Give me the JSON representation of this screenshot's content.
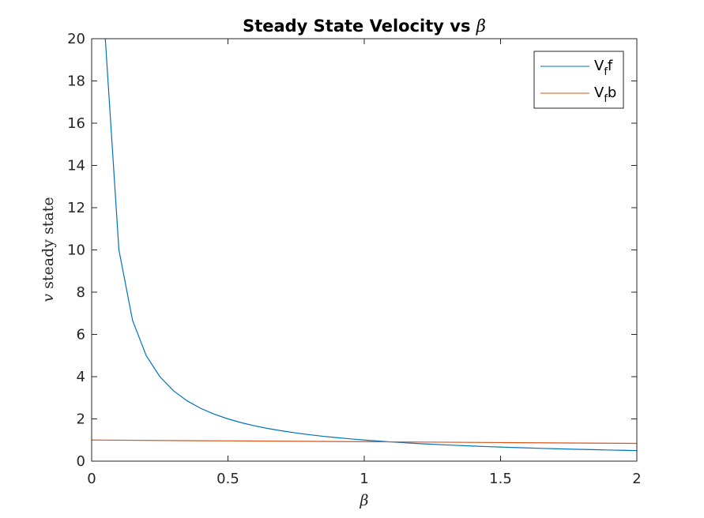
{
  "chart_data": {
    "type": "line",
    "title_text": "Steady State Velocity vs ",
    "title_symbol": "β",
    "xlabel": "β",
    "ylabel_symbol": "v",
    "ylabel_text": " steady state",
    "xlim": [
      0,
      2
    ],
    "ylim": [
      0,
      20
    ],
    "xticks": [
      0,
      0.5,
      1,
      1.5,
      2
    ],
    "xtick_labels": [
      "0",
      "0.5",
      "1",
      "1.5",
      "2"
    ],
    "yticks": [
      0,
      2,
      4,
      6,
      8,
      10,
      12,
      14,
      16,
      18,
      20
    ],
    "ytick_labels": [
      "0",
      "2",
      "4",
      "6",
      "8",
      "10",
      "12",
      "14",
      "16",
      "18",
      "20"
    ],
    "grid": false,
    "legend_position": "top-right",
    "series": [
      {
        "name": "V_f f",
        "legend_main": "V",
        "legend_sub": "f",
        "legend_tail": "f",
        "color": "#0072BD",
        "x": [
          0.05,
          0.1,
          0.15,
          0.2,
          0.25,
          0.3,
          0.35,
          0.4,
          0.45,
          0.5,
          0.55,
          0.6,
          0.65,
          0.7,
          0.75,
          0.8,
          0.85,
          0.9,
          0.95,
          1.0,
          1.05,
          1.1,
          1.15,
          1.2,
          1.25,
          1.3,
          1.35,
          1.4,
          1.45,
          1.5,
          1.55,
          1.6,
          1.65,
          1.7,
          1.75,
          1.8,
          1.85,
          1.9,
          1.95,
          2.0
        ],
        "y": [
          20.0,
          10.0,
          6.667,
          5.0,
          4.0,
          3.333,
          2.857,
          2.5,
          2.222,
          2.0,
          1.818,
          1.667,
          1.538,
          1.429,
          1.333,
          1.25,
          1.176,
          1.111,
          1.053,
          1.0,
          0.952,
          0.909,
          0.87,
          0.833,
          0.8,
          0.769,
          0.741,
          0.714,
          0.69,
          0.667,
          0.645,
          0.625,
          0.606,
          0.588,
          0.571,
          0.556,
          0.541,
          0.526,
          0.513,
          0.5
        ]
      },
      {
        "name": "V_f b",
        "legend_main": "V",
        "legend_sub": "f",
        "legend_tail": "b",
        "color": "#D95319",
        "x": [
          0.0,
          0.5,
          1.0,
          1.5,
          2.0
        ],
        "y": [
          1.0,
          0.96,
          0.92,
          0.88,
          0.84
        ]
      }
    ]
  }
}
